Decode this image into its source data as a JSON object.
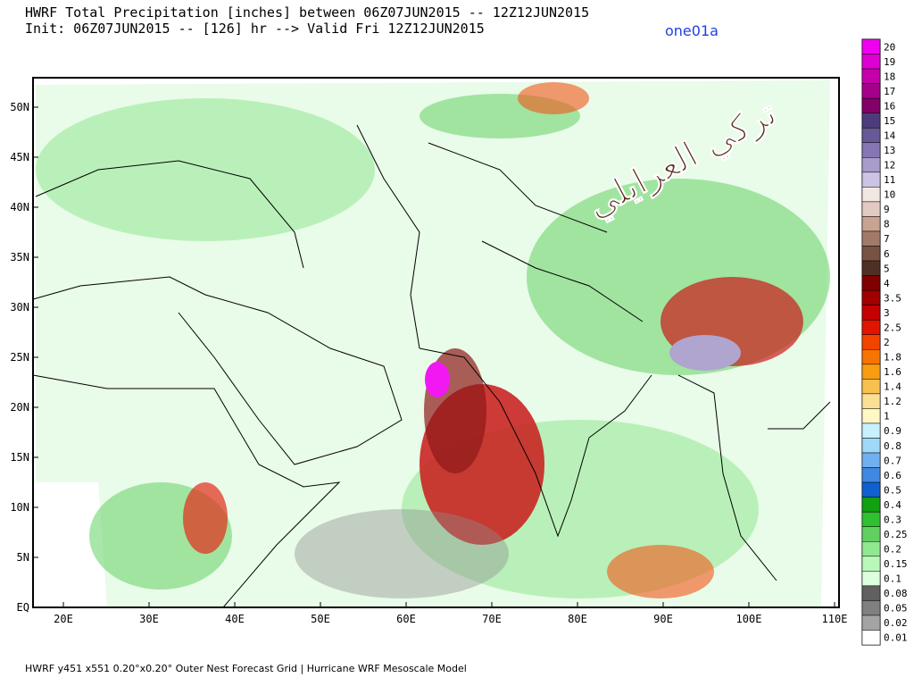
{
  "header": {
    "line1": "HWRF Total Precipitation [inches] between 06Z07JUN2015 -- 12Z12JUN2015",
    "line2": "Init: 06Z07JUN2015 -- [126] hr --> Valid Fri 12Z12JUN2015",
    "tag": "one01a"
  },
  "map": {
    "lat_ticks": [
      "EQ",
      "5N",
      "10N",
      "15N",
      "20N",
      "25N",
      "30N",
      "35N",
      "40N",
      "45N",
      "50N"
    ],
    "lon_ticks": [
      "20E",
      "30E",
      "40E",
      "50E",
      "60E",
      "70E",
      "80E",
      "90E",
      "100E",
      "110E"
    ],
    "watermark": "تركي العرايلي"
  },
  "colorbar": {
    "levels": [
      {
        "label": "20",
        "color": "#f000f0"
      },
      {
        "label": "19",
        "color": "#dc00d2"
      },
      {
        "label": "18",
        "color": "#c400aa"
      },
      {
        "label": "17",
        "color": "#a4008a"
      },
      {
        "label": "16",
        "color": "#820068"
      },
      {
        "label": "15",
        "color": "#4c3c7c"
      },
      {
        "label": "14",
        "color": "#685898"
      },
      {
        "label": "13",
        "color": "#8676b2"
      },
      {
        "label": "12",
        "color": "#a89cca"
      },
      {
        "label": "11",
        "color": "#ccc4e2"
      },
      {
        "label": "10",
        "color": "#f2e8e2"
      },
      {
        "label": "9",
        "color": "#e2cac2"
      },
      {
        "label": "8",
        "color": "#c8a292"
      },
      {
        "label": "7",
        "color": "#a27a6a"
      },
      {
        "label": "6",
        "color": "#785242"
      },
      {
        "label": "5",
        "color": "#503024"
      },
      {
        "label": "4",
        "color": "#800000"
      },
      {
        "label": "3.5",
        "color": "#a00000"
      },
      {
        "label": "3",
        "color": "#c40000"
      },
      {
        "label": "2.5",
        "color": "#e01400"
      },
      {
        "label": "2",
        "color": "#f04400"
      },
      {
        "label": "1.8",
        "color": "#f87400"
      },
      {
        "label": "1.6",
        "color": "#f89c10"
      },
      {
        "label": "1.4",
        "color": "#f8c050"
      },
      {
        "label": "1.2",
        "color": "#fae094"
      },
      {
        "label": "1",
        "color": "#fff8c4"
      },
      {
        "label": "0.9",
        "color": "#c8f0ff"
      },
      {
        "label": "0.8",
        "color": "#a0d8f8"
      },
      {
        "label": "0.7",
        "color": "#70b0f0"
      },
      {
        "label": "0.6",
        "color": "#4088e0"
      },
      {
        "label": "0.5",
        "color": "#1060d0"
      },
      {
        "label": "0.4",
        "color": "#10a010"
      },
      {
        "label": "0.3",
        "color": "#30c030"
      },
      {
        "label": "0.25",
        "color": "#60d060"
      },
      {
        "label": "0.2",
        "color": "#90e890"
      },
      {
        "label": "0.15",
        "color": "#b8f8b8"
      },
      {
        "label": "0.1",
        "color": "#dcffdc"
      },
      {
        "label": "0.08",
        "color": "#606060"
      },
      {
        "label": "0.05",
        "color": "#808080"
      },
      {
        "label": "0.02",
        "color": "#a4a4a4"
      },
      {
        "label": "0.01",
        "color": "#ffffff"
      }
    ]
  },
  "footer": "HWRF y451 x551 0.20°x0.20° Outer Nest Forecast Grid | Hurricane WRF Mesoscale Model"
}
